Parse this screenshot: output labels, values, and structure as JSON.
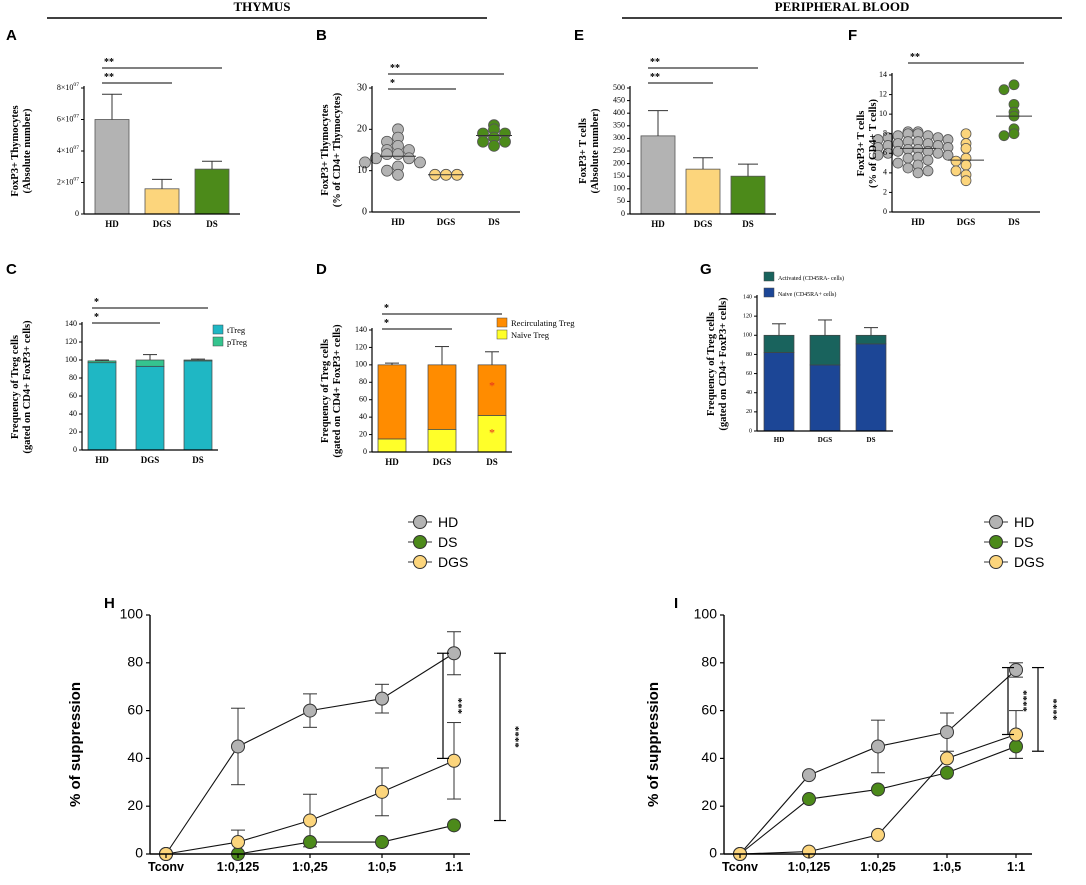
{
  "colors": {
    "hd": "#b3b3b3",
    "dgs": "#fcd57c",
    "ds": "#4c8a1a",
    "ttreg": "#1fb7c4",
    "ptreg": "#35c48f",
    "recirc": "#ff8c00",
    "naive": "#ffff29",
    "activated": "#19635d",
    "naiveCD45": "#1c4696",
    "star_red": "#e63020"
  },
  "headers": {
    "thymus": "THYMUS",
    "peripheral": "PERIPHERAL BLOOD"
  },
  "chart_data": [
    {
      "id": "A",
      "type": "bar",
      "letter": "A",
      "ylabel": [
        "FoxP3+ Thymocytes",
        "(Absolute number)"
      ],
      "categories": [
        "HD",
        "DGS",
        "DS"
      ],
      "values": [
        60000000,
        16000000,
        28500000
      ],
      "errors": [
        16000000,
        6000000,
        5000000
      ],
      "ylim": [
        0,
        80000000
      ],
      "ticks": [
        {
          "v": 0,
          "label": "0"
        },
        {
          "v": 20000000,
          "label": "2×10^07"
        },
        {
          "v": 40000000,
          "label": "4×10^07"
        },
        {
          "v": 60000000,
          "label": "6×10^07"
        },
        {
          "v": 80000000,
          "label": "8×10^07"
        }
      ],
      "sig": [
        {
          "from": 0,
          "to": 2,
          "label": "**"
        },
        {
          "from": 0,
          "to": 1,
          "label": "**"
        }
      ]
    },
    {
      "id": "B",
      "type": "scatter",
      "letter": "B",
      "ylabel": [
        "FoxP3+ Thymocytes",
        "(% of CD4+ Thymocytes)"
      ],
      "categories": [
        "HD",
        "DGS",
        "DS"
      ],
      "points": [
        [
          20,
          18,
          17,
          16,
          15,
          15,
          14,
          14,
          13,
          13,
          12,
          12,
          11,
          10,
          9
        ],
        [
          9,
          9,
          9
        ],
        [
          21,
          20,
          19,
          19,
          18,
          17,
          17,
          16
        ]
      ],
      "medians": [
        13.5,
        9,
        18.5
      ],
      "ylim": [
        0,
        30
      ],
      "ticks": [
        {
          "v": 0,
          "label": "0"
        },
        {
          "v": 10,
          "label": "10"
        },
        {
          "v": 20,
          "label": "20"
        },
        {
          "v": 30,
          "label": "30"
        }
      ],
      "sig": [
        {
          "from": 0,
          "to": 2,
          "label": "**"
        },
        {
          "from": 0,
          "to": 1,
          "label": "*"
        }
      ]
    },
    {
      "id": "E",
      "type": "bar",
      "letter": "E",
      "ylabel": [
        "FoxP3+ T cells",
        "(Absolute number)"
      ],
      "categories": [
        "HD",
        "DGS",
        "DS"
      ],
      "values": [
        310,
        178,
        150
      ],
      "errors": [
        100,
        45,
        48
      ],
      "ylim": [
        0,
        500
      ],
      "ticks": [
        {
          "v": 0,
          "label": "0"
        },
        {
          "v": 50,
          "label": "50"
        },
        {
          "v": 100,
          "label": "100"
        },
        {
          "v": 150,
          "label": "150"
        },
        {
          "v": 200,
          "label": "200"
        },
        {
          "v": 250,
          "label": "250"
        },
        {
          "v": 300,
          "label": "300"
        },
        {
          "v": 350,
          "label": "350"
        },
        {
          "v": 400,
          "label": "400"
        },
        {
          "v": 450,
          "label": "450"
        },
        {
          "v": 500,
          "label": "500"
        }
      ],
      "sig": [
        {
          "from": 0,
          "to": 2,
          "label": "**"
        },
        {
          "from": 0,
          "to": 1,
          "label": "**"
        }
      ]
    },
    {
      "id": "F",
      "type": "scatter",
      "letter": "F",
      "ylabel": [
        "FoxP3+ T cells",
        "(% of CD4+ T cells)"
      ],
      "categories": [
        "HD",
        "DGS",
        "DS"
      ],
      "points": [
        [
          8.2,
          8.2,
          8.0,
          8.0,
          7.8,
          7.8,
          7.6,
          7.6,
          7.4,
          7.4,
          7.2,
          7.2,
          7.0,
          7.0,
          6.8,
          6.8,
          6.6,
          6.6,
          6.4,
          6.4,
          6.2,
          6.2,
          6.0,
          6.0,
          5.8,
          5.8,
          5.6,
          5.5,
          5.3,
          5.0,
          4.8,
          4.5,
          4.2,
          4.0
        ],
        [
          8.0,
          7.0,
          6.5,
          5.5,
          5.2,
          4.8,
          4.2,
          3.8,
          3.2
        ],
        [
          13.0,
          12.5,
          11.0,
          10.2,
          9.8,
          8.5,
          8.0,
          7.8
        ]
      ],
      "medians": [
        6.5,
        5.3,
        9.8
      ],
      "ylim": [
        0,
        14
      ],
      "ticks": [
        {
          "v": 0,
          "label": "0"
        },
        {
          "v": 2,
          "label": "2"
        },
        {
          "v": 4,
          "label": "4"
        },
        {
          "v": 6,
          "label": "6"
        },
        {
          "v": 8,
          "label": "8"
        },
        {
          "v": 10,
          "label": "10"
        },
        {
          "v": 12,
          "label": "12"
        },
        {
          "v": 14,
          "label": "14"
        }
      ],
      "sig": [
        {
          "from": 0,
          "to": 2,
          "label": "**"
        }
      ]
    },
    {
      "id": "C",
      "type": "stacked-bar",
      "letter": "C",
      "ylabel": [
        "Frequency of Treg cells",
        "(gated on CD4+ FoxP3+ cells)"
      ],
      "categories": [
        "HD",
        "DGS",
        "DS"
      ],
      "series": [
        {
          "name": "tTreg",
          "color": "ttreg",
          "values": [
            97,
            93,
            99
          ],
          "errors": [
            0,
            3,
            0
          ]
        },
        {
          "name": "pTreg",
          "color": "ptreg",
          "values": [
            2,
            7,
            1
          ],
          "errors": [
            1,
            6,
            1
          ]
        }
      ],
      "ylim": [
        0,
        140
      ],
      "ticks": [
        {
          "v": 0,
          "label": "0"
        },
        {
          "v": 20,
          "label": "20"
        },
        {
          "v": 40,
          "label": "40"
        },
        {
          "v": 60,
          "label": "60"
        },
        {
          "v": 80,
          "label": "80"
        },
        {
          "v": 100,
          "label": "100"
        },
        {
          "v": 120,
          "label": "120"
        },
        {
          "v": 140,
          "label": "140"
        }
      ],
      "legend": [
        {
          "name": "tTreg",
          "color": "ttreg"
        },
        {
          "name": "pTreg",
          "color": "ptreg"
        }
      ],
      "sig": [
        {
          "from": 0,
          "to": 2,
          "label": "*"
        },
        {
          "from": 0,
          "to": 1,
          "label": "*"
        }
      ]
    },
    {
      "id": "D",
      "type": "stacked-bar",
      "letter": "D",
      "ylabel": [
        "Frequency of Treg cells",
        "(gated on CD4+ FoxP3+ cells)"
      ],
      "categories": [
        "HD",
        "DGS",
        "DS"
      ],
      "series": [
        {
          "name": "Naïve Treg",
          "color": "naive",
          "values": [
            15,
            26,
            42
          ],
          "errors": [
            2,
            21,
            15
          ]
        },
        {
          "name": "Recirculating Treg",
          "color": "recirc",
          "values": [
            85,
            74,
            58
          ],
          "errors": [
            2,
            21,
            15
          ]
        }
      ],
      "ylim": [
        0,
        140
      ],
      "ticks": [
        {
          "v": 0,
          "label": "0"
        },
        {
          "v": 20,
          "label": "20"
        },
        {
          "v": 40,
          "label": "40"
        },
        {
          "v": 60,
          "label": "60"
        },
        {
          "v": 80,
          "label": "80"
        },
        {
          "v": 100,
          "label": "100"
        },
        {
          "v": 120,
          "label": "120"
        },
        {
          "v": 140,
          "label": "140"
        }
      ],
      "legend": [
        {
          "name": "Recirculating Treg",
          "color": "recirc"
        },
        {
          "name": "Naïve Treg",
          "color": "naive"
        }
      ],
      "stars": [
        {
          "cat": 2,
          "value": 72,
          "label": "*"
        },
        {
          "cat": 2,
          "value": 18,
          "label": "*"
        }
      ],
      "sig": [
        {
          "from": 0,
          "to": 2,
          "label": "*"
        },
        {
          "from": 0,
          "to": 1,
          "label": "*"
        }
      ]
    },
    {
      "id": "G",
      "type": "stacked-bar",
      "letter": "G",
      "ylabel": [
        "Frequency of Treg cells",
        "(gated on CD4+ FoxP3+ cells)"
      ],
      "categories": [
        "HD",
        "DGS",
        "DS"
      ],
      "series": [
        {
          "name": "Naive (CD45RA+ cells)",
          "color": "naiveCD45",
          "values": [
            82,
            69,
            91
          ],
          "errors": [
            12,
            16,
            0
          ]
        },
        {
          "name": "Activated (CD45RA- cells)",
          "color": "activated",
          "values": [
            18,
            31,
            9
          ],
          "errors": [
            12,
            16,
            8
          ]
        }
      ],
      "ylim": [
        0,
        140
      ],
      "ticks": [
        {
          "v": 0,
          "label": "0"
        },
        {
          "v": 20,
          "label": "20"
        },
        {
          "v": 40,
          "label": "40"
        },
        {
          "v": 60,
          "label": "60"
        },
        {
          "v": 80,
          "label": "80"
        },
        {
          "v": 100,
          "label": "100"
        },
        {
          "v": 120,
          "label": "120"
        },
        {
          "v": 140,
          "label": "140"
        }
      ],
      "legend": [
        {
          "name": "Activated (CD45RA- cells)",
          "color": "activated"
        },
        {
          "name": "Naive (CD45RA+ cells)",
          "color": "naiveCD45"
        }
      ],
      "sig": []
    },
    {
      "id": "H",
      "type": "line",
      "letter": "H",
      "ylabel": "% of suppression",
      "categories": [
        "Tconv",
        "1:0,125",
        "1:0,25",
        "1:0,5",
        "1:1"
      ],
      "series": [
        {
          "name": "HD",
          "color": "hd",
          "values": [
            0,
            45,
            60,
            65,
            84
          ],
          "errors": [
            0,
            16,
            7,
            6,
            9
          ]
        },
        {
          "name": "DS",
          "color": "ds",
          "values": [
            0,
            0,
            5,
            5,
            12
          ],
          "errors": [
            0,
            0,
            0,
            0,
            0
          ]
        },
        {
          "name": "DGS",
          "color": "dgs",
          "values": [
            0,
            5,
            14,
            26,
            39
          ],
          "errors": [
            0,
            5,
            11,
            10,
            16
          ]
        }
      ],
      "ylim": [
        0,
        100
      ],
      "ticks": [
        {
          "v": 0,
          "label": "0"
        },
        {
          "v": 20,
          "label": "20"
        },
        {
          "v": 40,
          "label": "40"
        },
        {
          "v": 60,
          "label": "60"
        },
        {
          "v": 80,
          "label": "80"
        },
        {
          "v": 100,
          "label": "100"
        }
      ],
      "legend": [
        "HD",
        "DS",
        "DGS"
      ],
      "brackets": [
        {
          "top": 84,
          "bottom": 40,
          "label": "***"
        },
        {
          "top": 84,
          "bottom": 14,
          "label": "****"
        }
      ]
    },
    {
      "id": "I",
      "type": "line",
      "letter": "I",
      "ylabel": "% of suppression",
      "categories": [
        "Tconv",
        "1:0,125",
        "1:0,25",
        "1:0,5",
        "1:1"
      ],
      "series": [
        {
          "name": "HD",
          "color": "hd",
          "values": [
            0,
            33,
            45,
            51,
            77
          ],
          "errors": [
            0,
            0,
            11,
            8,
            3
          ]
        },
        {
          "name": "DS",
          "color": "ds",
          "values": [
            0,
            23,
            27,
            34,
            45
          ],
          "errors": [
            0,
            0,
            0,
            0,
            5
          ]
        },
        {
          "name": "DGS",
          "color": "dgs",
          "values": [
            0,
            1,
            8,
            40,
            50
          ],
          "errors": [
            0,
            0,
            0,
            0,
            10
          ]
        }
      ],
      "ylim": [
        0,
        100
      ],
      "ticks": [
        {
          "v": 0,
          "label": "0"
        },
        {
          "v": 20,
          "label": "20"
        },
        {
          "v": 40,
          "label": "40"
        },
        {
          "v": 60,
          "label": "60"
        },
        {
          "v": 80,
          "label": "80"
        },
        {
          "v": 100,
          "label": "100"
        }
      ],
      "legend": [
        "HD",
        "DS",
        "DGS"
      ],
      "brackets": [
        {
          "top": 78,
          "bottom": 50,
          "label": "****"
        },
        {
          "top": 78,
          "bottom": 43,
          "label": "****"
        }
      ]
    }
  ]
}
